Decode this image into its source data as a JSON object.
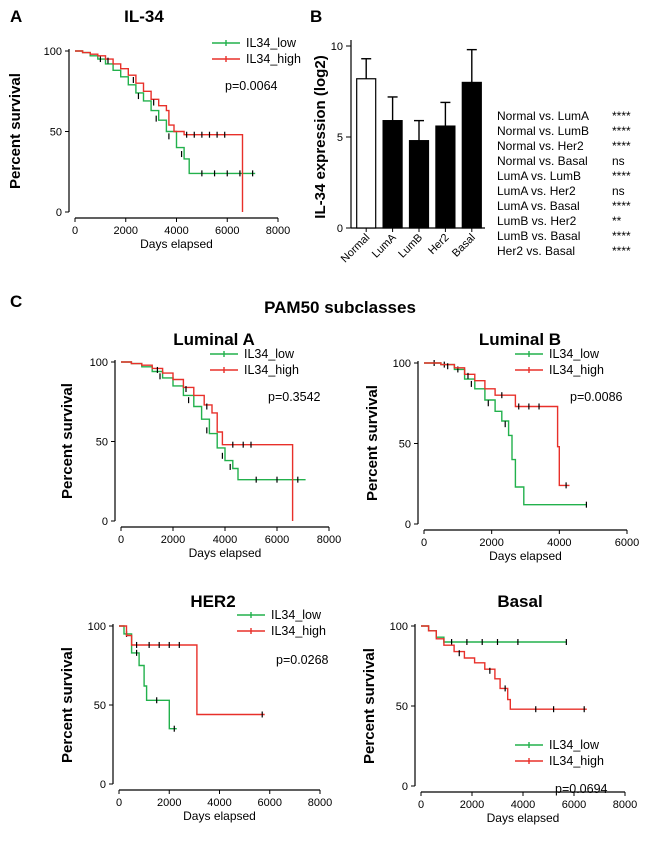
{
  "figure": {
    "panel_letters": [
      "A",
      "B",
      "C"
    ],
    "section_c_title": "PAM50 subclasses",
    "colors": {
      "low": "#22b14c",
      "high": "#e8302a",
      "bar_open": "#ffffff",
      "bar_filled": "#000000"
    }
  },
  "chart_data": [
    {
      "id": "A",
      "type": "line",
      "title": "IL-34",
      "xlabel": "Days elapsed",
      "ylabel": "Percent survival",
      "xlim": [
        0,
        8000
      ],
      "ylim": [
        0,
        100
      ],
      "xticks": [
        "0",
        "2000",
        "4000",
        "6000",
        "8000"
      ],
      "yticks": [
        "0",
        "50",
        "100"
      ],
      "legend": [
        "IL34_low",
        "IL34_high"
      ],
      "pvalue": "p=0.0064",
      "series": [
        {
          "name": "IL34_low",
          "color": "#22b14c",
          "points": [
            [
              0,
              100
            ],
            [
              300,
              99
            ],
            [
              600,
              97
            ],
            [
              900,
              95
            ],
            [
              1200,
              92
            ],
            [
              1500,
              88
            ],
            [
              1800,
              84
            ],
            [
              2100,
              79
            ],
            [
              2400,
              74
            ],
            [
              2700,
              69
            ],
            [
              3000,
              63
            ],
            [
              3300,
              57
            ],
            [
              3600,
              50
            ],
            [
              4000,
              40
            ],
            [
              4300,
              33
            ],
            [
              4500,
              24
            ],
            [
              7100,
              24
            ]
          ],
          "censors": [
            [
              1000,
              95
            ],
            [
              2500,
              72
            ],
            [
              3200,
              58
            ],
            [
              3700,
              47
            ],
            [
              4200,
              36
            ],
            [
              5000,
              24
            ],
            [
              5500,
              24
            ],
            [
              6000,
              24
            ],
            [
              6500,
              24
            ],
            [
              7000,
              24
            ]
          ]
        },
        {
          "name": "IL34_high",
          "color": "#e8302a",
          "points": [
            [
              0,
              100
            ],
            [
              300,
              99
            ],
            [
              600,
              98
            ],
            [
              900,
              97
            ],
            [
              1200,
              95
            ],
            [
              1500,
              92
            ],
            [
              1800,
              89
            ],
            [
              2100,
              85
            ],
            [
              2400,
              80
            ],
            [
              2700,
              75
            ],
            [
              3000,
              70
            ],
            [
              3300,
              66
            ],
            [
              3600,
              63
            ],
            [
              3700,
              54
            ],
            [
              3900,
              50
            ],
            [
              4300,
              48
            ],
            [
              6600,
              48
            ],
            [
              6600,
              0
            ]
          ],
          "censors": [
            [
              1300,
              94
            ],
            [
              2300,
              82
            ],
            [
              3100,
              68
            ],
            [
              4400,
              48
            ],
            [
              4700,
              48
            ],
            [
              5000,
              48
            ],
            [
              5300,
              48
            ],
            [
              5600,
              48
            ],
            [
              5900,
              48
            ]
          ]
        }
      ]
    },
    {
      "id": "B",
      "type": "bar",
      "ylabel": "IL-34 expression (log2)",
      "categories": [
        "Normal",
        "LumA",
        "LumB",
        "Her2",
        "Basal"
      ],
      "values": [
        8.2,
        5.9,
        4.8,
        5.6,
        8.0
      ],
      "errors": [
        1.1,
        1.3,
        1.1,
        1.3,
        1.8
      ],
      "ylim": [
        0,
        10
      ],
      "yticks": [
        "0",
        "5",
        "10"
      ],
      "filled": [
        false,
        true,
        true,
        true,
        true
      ],
      "comparisons": [
        {
          "label": "Normal vs. LumA",
          "sig": "****"
        },
        {
          "label": "Normal vs. LumB",
          "sig": "****"
        },
        {
          "label": "Normal vs. Her2",
          "sig": "****"
        },
        {
          "label": "Normal vs. Basal",
          "sig": "ns"
        },
        {
          "label": "LumA vs. LumB",
          "sig": "****"
        },
        {
          "label": "LumA vs. Her2",
          "sig": "ns"
        },
        {
          "label": "LumA vs. Basal",
          "sig": "****"
        },
        {
          "label": "LumB vs. Her2",
          "sig": "**"
        },
        {
          "label": "LumB vs. Basal",
          "sig": "****"
        },
        {
          "label": "Her2 vs. Basal",
          "sig": "****"
        }
      ]
    },
    {
      "id": "C1",
      "type": "line",
      "title": "Luminal A",
      "xlabel": "Days elapsed",
      "ylabel": "Percent survival",
      "xlim": [
        0,
        8000
      ],
      "ylim": [
        0,
        100
      ],
      "xticks": [
        "0",
        "2000",
        "4000",
        "6000",
        "8000"
      ],
      "yticks": [
        "0",
        "50",
        "100"
      ],
      "legend": [
        "IL34_low",
        "IL34_high"
      ],
      "pvalue": "p=0.3542",
      "series": [
        {
          "name": "IL34_low",
          "color": "#22b14c",
          "points": [
            [
              0,
              100
            ],
            [
              400,
              99
            ],
            [
              800,
              97
            ],
            [
              1200,
              94
            ],
            [
              1600,
              90
            ],
            [
              2000,
              85
            ],
            [
              2400,
              79
            ],
            [
              2800,
              72
            ],
            [
              3100,
              64
            ],
            [
              3400,
              55
            ],
            [
              3700,
              46
            ],
            [
              4000,
              38
            ],
            [
              4300,
              33
            ],
            [
              4500,
              26
            ],
            [
              7100,
              26
            ]
          ],
          "censors": [
            [
              1500,
              91
            ],
            [
              2600,
              76
            ],
            [
              3300,
              57
            ],
            [
              3900,
              41
            ],
            [
              4200,
              34
            ],
            [
              5200,
              26
            ],
            [
              6000,
              26
            ],
            [
              6800,
              26
            ]
          ]
        },
        {
          "name": "IL34_high",
          "color": "#e8302a",
          "points": [
            [
              0,
              100
            ],
            [
              400,
              99
            ],
            [
              800,
              98
            ],
            [
              1200,
              96
            ],
            [
              1600,
              93
            ],
            [
              2000,
              89
            ],
            [
              2400,
              84
            ],
            [
              2800,
              79
            ],
            [
              3200,
              73
            ],
            [
              3500,
              68
            ],
            [
              3700,
              56
            ],
            [
              3900,
              48
            ],
            [
              6600,
              48
            ],
            [
              6600,
              0
            ]
          ],
          "censors": [
            [
              1400,
              95
            ],
            [
              2500,
              83
            ],
            [
              3300,
              72
            ],
            [
              4300,
              48
            ],
            [
              4700,
              48
            ],
            [
              5000,
              48
            ]
          ]
        }
      ]
    },
    {
      "id": "C2",
      "type": "line",
      "title": "Luminal B",
      "xlabel": "Days elapsed",
      "ylabel": "Percent survival",
      "xlim": [
        0,
        6000
      ],
      "ylim": [
        0,
        100
      ],
      "xticks": [
        "0",
        "2000",
        "4000",
        "6000"
      ],
      "yticks": [
        "0",
        "50",
        "100"
      ],
      "legend": [
        "IL34_low",
        "IL34_high"
      ],
      "pvalue": "p=0.0086",
      "series": [
        {
          "name": "IL34_low",
          "color": "#22b14c",
          "points": [
            [
              0,
              100
            ],
            [
              500,
              99
            ],
            [
              900,
              96
            ],
            [
              1200,
              90
            ],
            [
              1500,
              84
            ],
            [
              1800,
              77
            ],
            [
              2100,
              70
            ],
            [
              2300,
              64
            ],
            [
              2500,
              55
            ],
            [
              2600,
              40
            ],
            [
              2700,
              23
            ],
            [
              2900,
              23
            ],
            [
              2950,
              12
            ],
            [
              4800,
              12
            ]
          ],
          "censors": [
            [
              300,
              100
            ],
            [
              600,
              99
            ],
            [
              1000,
              96
            ],
            [
              1400,
              87
            ],
            [
              1900,
              75
            ],
            [
              2400,
              62
            ],
            [
              4800,
              12
            ]
          ]
        },
        {
          "name": "IL34_high",
          "color": "#e8302a",
          "points": [
            [
              0,
              100
            ],
            [
              500,
              99
            ],
            [
              900,
              97
            ],
            [
              1200,
              93
            ],
            [
              1500,
              89
            ],
            [
              1800,
              84
            ],
            [
              2100,
              80
            ],
            [
              2600,
              80
            ],
            [
              2700,
              73
            ],
            [
              3900,
              73
            ],
            [
              3950,
              48
            ],
            [
              4000,
              24
            ],
            [
              4300,
              24
            ]
          ],
          "censors": [
            [
              700,
              98
            ],
            [
              1300,
              92
            ],
            [
              2300,
              80
            ],
            [
              2800,
              73
            ],
            [
              3100,
              73
            ],
            [
              3400,
              73
            ],
            [
              4200,
              24
            ]
          ]
        }
      ]
    },
    {
      "id": "C3",
      "type": "line",
      "title": "HER2",
      "xlabel": "Days elapsed",
      "ylabel": "Percent survival",
      "xlim": [
        0,
        8000
      ],
      "ylim": [
        0,
        100
      ],
      "xticks": [
        "0",
        "2000",
        "4000",
        "6000",
        "8000"
      ],
      "yticks": [
        "0",
        "50",
        "100"
      ],
      "legend": [
        "IL34_low",
        "IL34_high"
      ],
      "pvalue": "p=0.0268",
      "series": [
        {
          "name": "IL34_low",
          "color": "#22b14c",
          "points": [
            [
              0,
              100
            ],
            [
              200,
              95
            ],
            [
              500,
              83
            ],
            [
              800,
              75
            ],
            [
              1000,
              62
            ],
            [
              1100,
              53
            ],
            [
              1900,
              53
            ],
            [
              2000,
              35
            ],
            [
              2300,
              35
            ]
          ],
          "censors": [
            [
              300,
              95
            ],
            [
              700,
              83
            ],
            [
              1500,
              53
            ],
            [
              2200,
              35
            ]
          ]
        },
        {
          "name": "IL34_high",
          "color": "#e8302a",
          "points": [
            [
              0,
              100
            ],
            [
              300,
              94
            ],
            [
              500,
              88
            ],
            [
              3100,
              88
            ],
            [
              3100,
              44
            ],
            [
              5800,
              44
            ]
          ],
          "censors": [
            [
              700,
              88
            ],
            [
              1200,
              88
            ],
            [
              1600,
              88
            ],
            [
              2000,
              88
            ],
            [
              2400,
              88
            ],
            [
              5700,
              44
            ]
          ]
        }
      ]
    },
    {
      "id": "C4",
      "type": "line",
      "title": "Basal",
      "xlabel": "Days elapsed",
      "ylabel": "Percent survival",
      "xlim": [
        0,
        8000
      ],
      "ylim": [
        0,
        100
      ],
      "xticks": [
        "0",
        "2000",
        "4000",
        "6000",
        "8000"
      ],
      "yticks": [
        "0",
        "50",
        "100"
      ],
      "legend": [
        "IL34_low",
        "IL34_high"
      ],
      "pvalue": "p=0.0694",
      "series": [
        {
          "name": "IL34_low",
          "color": "#22b14c",
          "points": [
            [
              0,
              100
            ],
            [
              300,
              97
            ],
            [
              600,
              93
            ],
            [
              900,
              90
            ],
            [
              5700,
              90
            ]
          ],
          "censors": [
            [
              1200,
              90
            ],
            [
              1800,
              90
            ],
            [
              2400,
              90
            ],
            [
              3000,
              90
            ],
            [
              3800,
              90
            ],
            [
              5700,
              90
            ]
          ]
        },
        {
          "name": "IL34_high",
          "color": "#e8302a",
          "points": [
            [
              0,
              100
            ],
            [
              300,
              97
            ],
            [
              600,
              92
            ],
            [
              900,
              88
            ],
            [
              1300,
              84
            ],
            [
              1700,
              80
            ],
            [
              2100,
              77
            ],
            [
              2500,
              73
            ],
            [
              2900,
              67
            ],
            [
              3100,
              61
            ],
            [
              3400,
              54
            ],
            [
              3500,
              48
            ],
            [
              6500,
              48
            ]
          ],
          "censors": [
            [
              1500,
              83
            ],
            [
              2700,
              72
            ],
            [
              3300,
              61
            ],
            [
              4500,
              48
            ],
            [
              5200,
              48
            ],
            [
              6400,
              48
            ]
          ]
        }
      ]
    }
  ]
}
